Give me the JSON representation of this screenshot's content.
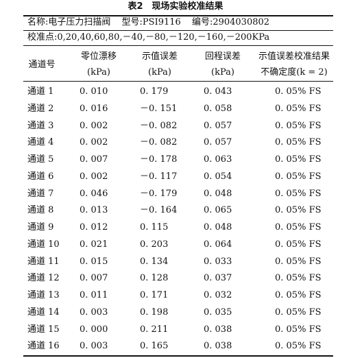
{
  "caption": "表2　现场实验校准结果",
  "info": {
    "name": "名称:电子压力扫描阀",
    "model": "型号:PSI9116",
    "serial": "编号:2904030802",
    "points": "校准点:0,20,40,60,80,－40,－80,－120,－160,－200KPa"
  },
  "headers": {
    "channel": "通道号",
    "zero_drift": "零位漂移",
    "zero_drift_unit": "(kPa)",
    "indication_error": "示值误差",
    "indication_error_unit": "(kPa)",
    "hysteresis": "回程误差",
    "hysteresis_unit": "(kPa)",
    "uncertainty": "示值误差校准结果",
    "uncertainty_sub": "不确定度(k = 2)"
  },
  "rows": [
    {
      "channel": "通道 1",
      "zero": "0. 010",
      "error": "0. 179",
      "hyst": "0. 043",
      "unc": "0. 05% FS"
    },
    {
      "channel": "通道 2",
      "zero": "0. 016",
      "error": "－0. 151",
      "hyst": "0. 058",
      "unc": "0. 05% FS"
    },
    {
      "channel": "通道 3",
      "zero": "0. 002",
      "error": "－0. 082",
      "hyst": "0. 057",
      "unc": "0. 05% FS"
    },
    {
      "channel": "通道 4",
      "zero": "0. 002",
      "error": "－0. 082",
      "hyst": "0. 057",
      "unc": "0. 05% FS"
    },
    {
      "channel": "通道 5",
      "zero": "0. 007",
      "error": "－0. 178",
      "hyst": "0. 063",
      "unc": "0. 05% FS"
    },
    {
      "channel": "通道 6",
      "zero": "0. 002",
      "error": "－0. 117",
      "hyst": "0. 054",
      "unc": "0. 05% FS"
    },
    {
      "channel": "通道 7",
      "zero": "0. 046",
      "error": "－0. 179",
      "hyst": "0. 048",
      "unc": "0. 05% FS"
    },
    {
      "channel": "通道 8",
      "zero": "0. 013",
      "error": "－0. 164",
      "hyst": "0. 065",
      "unc": "0. 05% FS"
    },
    {
      "channel": "通道 9",
      "zero": "0. 012",
      "error": "0. 115",
      "hyst": "0. 048",
      "unc": "0. 05% FS"
    },
    {
      "channel": "通道 10",
      "zero": "0. 021",
      "error": "0. 203",
      "hyst": "0. 064",
      "unc": "0. 05% FS"
    },
    {
      "channel": "通道 11",
      "zero": "0. 015",
      "error": "0. 134",
      "hyst": "0. 033",
      "unc": "0. 05% FS"
    },
    {
      "channel": "通道 12",
      "zero": "0. 007",
      "error": "0. 128",
      "hyst": "0. 037",
      "unc": "0. 05% FS"
    },
    {
      "channel": "通道 13",
      "zero": "0. 011",
      "error": "0. 171",
      "hyst": "0. 032",
      "unc": "0. 05% FS"
    },
    {
      "channel": "通道 14",
      "zero": "0. 003",
      "error": "0. 198",
      "hyst": "0. 035",
      "unc": "0. 05% FS"
    },
    {
      "channel": "通道 15",
      "zero": "0. 000",
      "error": "0. 211",
      "hyst": "0. 038",
      "unc": "0. 05% FS"
    },
    {
      "channel": "通道 16",
      "zero": "0. 003",
      "error": "0. 165",
      "hyst": "0. 038",
      "unc": "0. 05% FS"
    }
  ]
}
